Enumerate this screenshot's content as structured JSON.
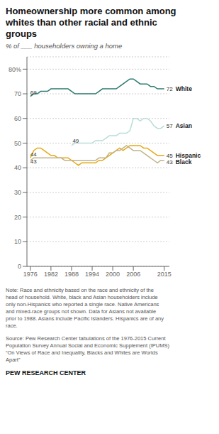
{
  "chart_data": {
    "type": "line",
    "title": "Homeownership  more common among\nwhites than other racial and ethnic\ngroups",
    "subtitle": "% of ___ householders owning a home",
    "series": [
      {
        "name": "White",
        "color": "#2b7a6f",
        "end_label": "72",
        "x": [
          1976,
          1977,
          1978,
          1979,
          1980,
          1981,
          1982,
          1983,
          1984,
          1985,
          1986,
          1987,
          1988,
          1989,
          1990,
          1991,
          1992,
          1993,
          1994,
          1995,
          1996,
          1997,
          1998,
          1999,
          2000,
          2001,
          2002,
          2003,
          2004,
          2005,
          2006,
          2007,
          2008,
          2009,
          2010,
          2011,
          2012,
          2013,
          2014,
          2015
        ],
        "values": [
          69,
          70,
          70,
          71,
          71,
          71,
          72,
          72,
          72,
          72,
          72,
          72,
          71,
          70,
          70,
          70,
          70,
          70,
          70,
          70,
          71,
          72,
          72,
          72,
          72,
          72,
          73,
          74,
          75,
          76,
          76,
          75,
          74,
          74,
          74,
          73,
          73,
          72,
          72,
          72
        ]
      },
      {
        "name": "Asian",
        "color": "#b8ddd8",
        "end_label": "57",
        "x": [
          1988,
          1989,
          1990,
          1991,
          1992,
          1993,
          1994,
          1995,
          1996,
          1997,
          1998,
          1999,
          2000,
          2001,
          2002,
          2003,
          2004,
          2005,
          2006,
          2007,
          2008,
          2009,
          2010,
          2011,
          2012,
          2013,
          2014,
          2015
        ],
        "values": [
          49,
          50,
          50,
          50,
          50,
          50,
          50,
          51,
          51,
          51,
          52,
          53,
          53,
          53,
          54,
          54,
          54,
          55,
          60,
          60,
          59,
          60,
          60,
          59,
          57,
          56,
          56,
          57
        ]
      },
      {
        "name": "Hispanic",
        "color": "#e6a817",
        "end_label": "45",
        "x": [
          1976,
          1977,
          1978,
          1979,
          1980,
          1981,
          1982,
          1983,
          1984,
          1985,
          1986,
          1987,
          1988,
          1989,
          1990,
          1991,
          1992,
          1993,
          1994,
          1995,
          1996,
          1997,
          1998,
          1999,
          2000,
          2001,
          2002,
          2003,
          2004,
          2005,
          2006,
          2007,
          2008,
          2009,
          2010,
          2011,
          2012,
          2013,
          2014,
          2015
        ],
        "values": [
          44,
          47,
          48,
          48,
          47,
          46,
          45,
          45,
          44,
          44,
          44,
          44,
          43,
          42,
          41,
          42,
          42,
          42,
          42,
          42,
          43,
          43,
          44,
          45,
          46,
          47,
          48,
          47,
          48,
          49,
          49,
          49,
          49,
          48,
          48,
          47,
          46,
          45,
          45,
          45
        ]
      },
      {
        "name": "Black",
        "color": "#bfb48a",
        "end_label": "43",
        "x": [
          1976,
          1977,
          1978,
          1979,
          1980,
          1981,
          1982,
          1983,
          1984,
          1985,
          1986,
          1987,
          1988,
          1989,
          1990,
          1991,
          1992,
          1993,
          1994,
          1995,
          1996,
          1997,
          1998,
          1999,
          2000,
          2001,
          2002,
          2003,
          2004,
          2005,
          2006,
          2007,
          2008,
          2009,
          2010,
          2011,
          2012,
          2013,
          2014,
          2015
        ],
        "values": [
          43,
          44,
          44,
          44,
          44,
          44,
          44,
          44,
          44,
          44,
          43,
          43,
          43,
          43,
          43,
          43,
          43,
          43,
          43,
          43,
          44,
          44,
          44,
          46,
          46,
          47,
          47,
          48,
          49,
          48,
          47,
          47,
          47,
          46,
          45,
          44,
          43,
          42,
          43,
          43
        ]
      }
    ],
    "annotations": [
      {
        "text": "69",
        "x": 1976,
        "y": 69.5
      },
      {
        "text": "44",
        "x": 1976,
        "y": 44.5
      },
      {
        "text": "43",
        "x": 1976,
        "y": 41.5
      },
      {
        "text": "49",
        "x": 1988.3,
        "y": 49.8
      }
    ],
    "xlim": [
      1975,
      2016.5
    ],
    "xticks": [
      1976,
      1982,
      1988,
      1994,
      2000,
      2006,
      2015
    ],
    "ylim": [
      0,
      85
    ],
    "yticks": [
      0,
      10,
      20,
      30,
      40,
      50,
      60,
      70,
      {
        "value": 80,
        "label": "80%"
      }
    ],
    "grid": true,
    "note": "Note: Race and ethnicity based on the race and ethnicity of the\nhead of household. White, black and Asian householders include\nonly non-Hispanics who reported a single race. Native Americans\nand mixed-race groups not shown. Data for Asians not available\nprior to 1988. Asians include Pacific Islanders. Hispanics are of any\nrace.",
    "source": "Source: Pew Research Center tabulations of the 1976-2015 Current\nPopulation Survey Annual Social and Economic Supplement (IPUMS)\n“On Views of Race and Inequality, Blacks and Whites are Worlds\nApart”",
    "credit": "PEW RESEARCH CENTER"
  }
}
